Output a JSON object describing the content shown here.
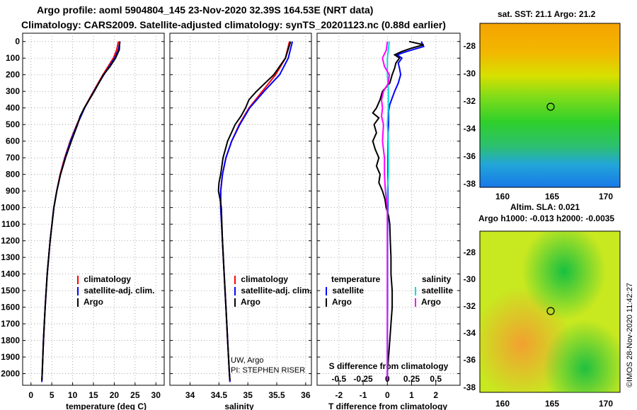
{
  "header": {
    "line1": "Argo profile: aoml 5904804_145 23-Nov-2020 32.39S 164.53E (NRT data)",
    "line2": "Climatology: CARS2009. Satellite-adjusted climatology: synTS_20201123.nc (0.88d earlier)"
  },
  "colors": {
    "climatology": "#ff0000",
    "satellite": "#0000ff",
    "argo": "#000000",
    "sat_salinity": "#00dddd",
    "argo_salinity": "#ff00ff"
  },
  "depth_axis": {
    "ylim": [
      -50,
      2070
    ],
    "ticks": [
      0,
      100,
      200,
      300,
      400,
      500,
      600,
      700,
      800,
      900,
      1000,
      1100,
      1200,
      1300,
      1400,
      1500,
      1600,
      1700,
      1800,
      1900,
      2000
    ]
  },
  "legend": {
    "climatology": "climatology",
    "satellite_adj": "satellite-adj. clim.",
    "argo": "Argo",
    "diff_temperature": "temperature",
    "diff_salinity": "salinity",
    "satellite": "satellite"
  },
  "credits": {
    "line1": "UW, Argo",
    "line2": "PI: STEPHEN RISER"
  },
  "maps": {
    "sst_title": "sat. SST: 21.1 Argo: 21.2",
    "sla_title1": "Altim. SLA: 0.021",
    "sla_title2": "Argo h1000: -0.013 h2000: -0.0035",
    "lat_ticks": [
      "-28",
      "-30",
      "-32",
      "-34",
      "-36",
      "-38"
    ],
    "lon_ticks": [
      "160",
      "165",
      "170"
    ],
    "stamp": "©IMOS 28-Nov-2020 11:42:27"
  },
  "chart_data": [
    {
      "type": "line",
      "title": "",
      "xlabel": "temperature (deg C)",
      "ylabel": "",
      "xlim": [
        -2,
        32
      ],
      "xticks": [
        0,
        5,
        10,
        15,
        20,
        25,
        30
      ],
      "series": [
        {
          "name": "climatology",
          "depth": [
            0,
            50,
            100,
            200,
            300,
            400,
            500,
            600,
            700,
            800,
            900,
            1000,
            1200,
            1400,
            1600,
            1800,
            2000,
            2050
          ],
          "values": [
            21.0,
            20.6,
            19.8,
            17.3,
            15.0,
            12.8,
            11.0,
            9.4,
            8.1,
            7.0,
            6.2,
            5.5,
            4.6,
            3.9,
            3.4,
            3.0,
            2.7,
            2.6
          ]
        },
        {
          "name": "satellite-adj. clim.",
          "depth": [
            0,
            50,
            100,
            200,
            300,
            400,
            500,
            600,
            700,
            800,
            900,
            1000,
            1200,
            1400,
            1600,
            1800,
            2000,
            2050
          ],
          "values": [
            21.4,
            21.0,
            20.1,
            17.5,
            15.1,
            12.9,
            11.1,
            9.5,
            8.2,
            7.1,
            6.2,
            5.5,
            4.6,
            3.9,
            3.4,
            3.0,
            2.7,
            2.6
          ]
        },
        {
          "name": "Argo",
          "depth": [
            0,
            50,
            100,
            150,
            200,
            300,
            400,
            450,
            500,
            600,
            700,
            800,
            900,
            1000,
            1200,
            1400,
            1600,
            1800,
            2000,
            2040
          ],
          "values": [
            21.3,
            21.2,
            20.3,
            19.0,
            17.4,
            15.2,
            12.8,
            11.8,
            11.2,
            9.7,
            8.3,
            7.1,
            6.2,
            5.5,
            4.6,
            3.9,
            3.4,
            3.0,
            2.7,
            2.6
          ]
        }
      ]
    },
    {
      "type": "line",
      "title": "",
      "xlabel": "salinity",
      "ylabel": "",
      "xlim": [
        33.65,
        36.1
      ],
      "xticks": [
        34,
        34.5,
        35,
        35.5,
        36
      ],
      "tick_labels": [
        "34",
        "34.5",
        "35",
        "35.5",
        "36"
      ],
      "series": [
        {
          "name": "climatology",
          "depth": [
            0,
            100,
            200,
            300,
            400,
            500,
            600,
            700,
            800,
            900,
            1000,
            1200,
            1400,
            1600,
            1800,
            2000,
            2050
          ],
          "values": [
            35.72,
            35.65,
            35.48,
            35.25,
            35.02,
            34.85,
            34.72,
            34.62,
            34.56,
            34.53,
            34.53,
            34.56,
            34.59,
            34.62,
            34.65,
            34.68,
            34.69
          ]
        },
        {
          "name": "satellite-adj. clim.",
          "depth": [
            0,
            100,
            200,
            300,
            400,
            500,
            600,
            700,
            800,
            900,
            1000,
            1200,
            1400,
            1600,
            1800,
            2000,
            2050
          ],
          "values": [
            35.77,
            35.7,
            35.55,
            35.28,
            35.03,
            34.86,
            34.72,
            34.62,
            34.56,
            34.53,
            34.53,
            34.56,
            34.59,
            34.62,
            34.65,
            34.68,
            34.69
          ]
        },
        {
          "name": "Argo",
          "depth": [
            0,
            100,
            200,
            300,
            350,
            400,
            450,
            500,
            600,
            700,
            800,
            850,
            900,
            950,
            1000,
            1200,
            1400,
            1600,
            1800,
            2000,
            2040
          ],
          "values": [
            35.74,
            35.65,
            35.45,
            35.15,
            35.02,
            34.96,
            34.88,
            34.78,
            34.65,
            34.57,
            34.53,
            34.5,
            34.49,
            34.52,
            34.54,
            34.56,
            34.59,
            34.62,
            34.65,
            34.68,
            34.69
          ]
        }
      ]
    },
    {
      "type": "line",
      "title": "",
      "xlabel": "T difference from climatology",
      "secondary_xlabel": "S difference from climatology",
      "ylabel": "",
      "xlim": [
        -2.9,
        3.0
      ],
      "xticks": [
        -2,
        -1,
        0,
        1,
        2
      ],
      "secondary_xticks": [
        -0.5,
        -0.25,
        0,
        0.25,
        0.5
      ],
      "series": [
        {
          "name": "temperature satellite",
          "depth": [
            0,
            30,
            60,
            80,
            100,
            130,
            160,
            200,
            250,
            300,
            340,
            380,
            420,
            460,
            500,
            550,
            600,
            700,
            800,
            900,
            1000,
            1200,
            1400,
            1600,
            1800,
            2000,
            2040
          ],
          "values": [
            1.4,
            1.5,
            0.8,
            0.4,
            0.6,
            0.45,
            0.5,
            0.55,
            0.45,
            0.3,
            0.2,
            0.1,
            0.05,
            0.05,
            0.05,
            0.03,
            0.03,
            0.02,
            0.02,
            0.02,
            0.02,
            0.01,
            0.01,
            0.01,
            0.0,
            0.0,
            0.0
          ]
        },
        {
          "name": "temperature Argo",
          "depth": [
            0,
            20,
            40,
            60,
            80,
            100,
            130,
            160,
            200,
            250,
            300,
            350,
            400,
            430,
            460,
            500,
            550,
            600,
            650,
            700,
            750,
            800,
            850,
            900,
            950,
            1000,
            1050,
            1100,
            1200,
            1300,
            1400,
            1500,
            1600,
            1700,
            1800,
            1900,
            2000,
            2040
          ],
          "values": [
            0.9,
            1.5,
            1.0,
            0.6,
            0.3,
            0.5,
            0.35,
            0.3,
            0.2,
            0.1,
            -0.2,
            -0.3,
            -0.45,
            -0.6,
            -0.35,
            -0.55,
            -0.45,
            -0.6,
            -0.5,
            -0.35,
            -0.45,
            -0.3,
            -0.35,
            -0.2,
            -0.1,
            -0.05,
            0.05,
            0.1,
            0.12,
            0.15,
            0.15,
            0.2,
            0.2,
            0.15,
            0.1,
            0.05,
            0.0,
            0.0
          ]
        },
        {
          "name": "salinity satellite",
          "depth": [
            0,
            50,
            100,
            200,
            300,
            400,
            500,
            600,
            700,
            800,
            900,
            1000,
            1200,
            1400,
            1600,
            1800,
            2000,
            2040
          ],
          "values": [
            0.02,
            0.01,
            0.0,
            0.0,
            0.01,
            0.01,
            0.0,
            0.01,
            0.01,
            0.01,
            0.0,
            0.0,
            0.0,
            0.0,
            0.0,
            0.0,
            0.0,
            0.0
          ]
        },
        {
          "name": "salinity Argo",
          "depth": [
            0,
            50,
            100,
            150,
            200,
            250,
            300,
            350,
            400,
            450,
            500,
            600,
            700,
            800,
            900,
            1000,
            1200,
            1400,
            1600,
            1800,
            2000,
            2040
          ],
          "values": [
            0.0,
            -0.01,
            -0.05,
            -0.03,
            0.02,
            0.01,
            -0.04,
            -0.06,
            -0.05,
            -0.06,
            -0.04,
            -0.05,
            -0.03,
            -0.03,
            -0.02,
            0.0,
            0.0,
            0.0,
            0.0,
            0.0,
            0.0,
            0.0
          ]
        }
      ]
    }
  ]
}
